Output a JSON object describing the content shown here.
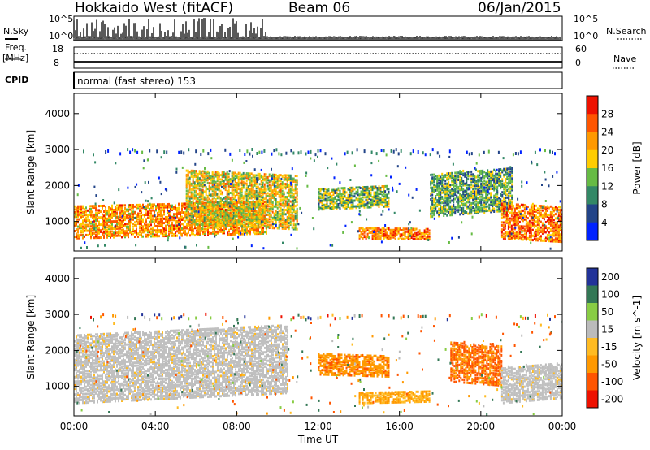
{
  "header": {
    "title": "Hokkaido West (fitACF)",
    "beam": "Beam 06",
    "date": "06/Jan/2015"
  },
  "strip": {
    "nsky_label": "N.Sky",
    "nsearch_label": "N.Search",
    "freq_label_1": "Freq.",
    "freq_label_2": "[MHz]",
    "nave_label": "Nave",
    "cpid_label": "CPID",
    "cpid_text": "normal (fast stereo) 153",
    "noise_ticks_left": [
      "10^5",
      "10^0"
    ],
    "noise_ticks_right": [
      "10^5",
      "10^0"
    ],
    "freq_ticks": [
      "18",
      "8"
    ],
    "nave_ticks": [
      "60",
      "0"
    ]
  },
  "colors": {
    "power": [
      "#0022ff",
      "#224488",
      "#338866",
      "#66bb44",
      "#ffcc00",
      "#ff9900",
      "#ff5500",
      "#ee1100"
    ],
    "velocity": [
      "#ee1100",
      "#ff5500",
      "#ff9900",
      "#ffbb22",
      "#bbbbbb",
      "#88cc44",
      "#337755",
      "#223399"
    ],
    "velocity_bg_gray": "#c0c0c0"
  },
  "chart_data": [
    {
      "type": "heatmap",
      "title": "Power",
      "ylabel": "Slant Range [km]",
      "colorbar_label": "Power [dB]",
      "colorbar_ticks": [
        "4",
        "8",
        "12",
        "16",
        "20",
        "24",
        "28"
      ],
      "ylim": [
        180,
        4560
      ],
      "y_ticks": [
        "1000",
        "2000",
        "3000",
        "4000"
      ],
      "x_ticks": [
        "00:00",
        "04:00",
        "08:00",
        "12:00",
        "16:00",
        "20:00",
        "00:00"
      ],
      "xlim": [
        0,
        24
      ],
      "features": [
        {
          "name": "near-range band",
          "t_start": 0.0,
          "t_end": 9.5,
          "range_km": [
            500,
            1400
          ],
          "power_db": 22
        },
        {
          "name": "rising arc",
          "t_start": 5.5,
          "t_end": 11.0,
          "range_km": [
            900,
            2400
          ],
          "power_db": 18
        },
        {
          "name": "mid-day echo",
          "t_start": 12.0,
          "t_end": 15.5,
          "range_km": [
            1300,
            1900
          ],
          "power_db": 14
        },
        {
          "name": "close echo",
          "t_start": 14.0,
          "t_end": 17.5,
          "range_km": [
            500,
            800
          ],
          "power_db": 24
        },
        {
          "name": "evening arc",
          "t_start": 17.5,
          "t_end": 21.5,
          "range_km": [
            1100,
            2300
          ],
          "power_db": 12
        },
        {
          "name": "late echo",
          "t_start": 21.0,
          "t_end": 24.0,
          "range_km": [
            500,
            1500
          ],
          "power_db": 24
        }
      ]
    },
    {
      "type": "heatmap",
      "title": "Velocity",
      "ylabel": "Slant Range [km]",
      "colorbar_label": "Velocity [m s^-1]",
      "colorbar_ticks": [
        "200",
        "100",
        "50",
        "15",
        "-15",
        "-50",
        "-100",
        "-200"
      ],
      "ylim": [
        180,
        4560
      ],
      "y_ticks": [
        "1000",
        "2000",
        "3000",
        "4000"
      ],
      "x_ticks": [
        "00:00",
        "04:00",
        "08:00",
        "12:00",
        "16:00",
        "20:00",
        "00:00"
      ],
      "xlabel": "Time UT",
      "xlim": [
        0,
        24
      ],
      "features": [
        {
          "name": "ground scatter band",
          "t_start": 0.0,
          "t_end": 10.5,
          "range_km": [
            500,
            2400
          ],
          "velocity_ms": 0
        },
        {
          "name": "mid-day echo",
          "t_start": 12.0,
          "t_end": 15.5,
          "range_km": [
            1300,
            1900
          ],
          "velocity_ms": -60
        },
        {
          "name": "close echo",
          "t_start": 14.0,
          "t_end": 17.5,
          "range_km": [
            500,
            800
          ],
          "velocity_ms": -30
        },
        {
          "name": "evening arc",
          "t_start": 18.5,
          "t_end": 21.0,
          "range_km": [
            1100,
            2200
          ],
          "velocity_ms": -80
        },
        {
          "name": "late band",
          "t_start": 21.0,
          "t_end": 24.0,
          "range_km": [
            500,
            1500
          ],
          "velocity_ms": 0
        }
      ]
    }
  ]
}
